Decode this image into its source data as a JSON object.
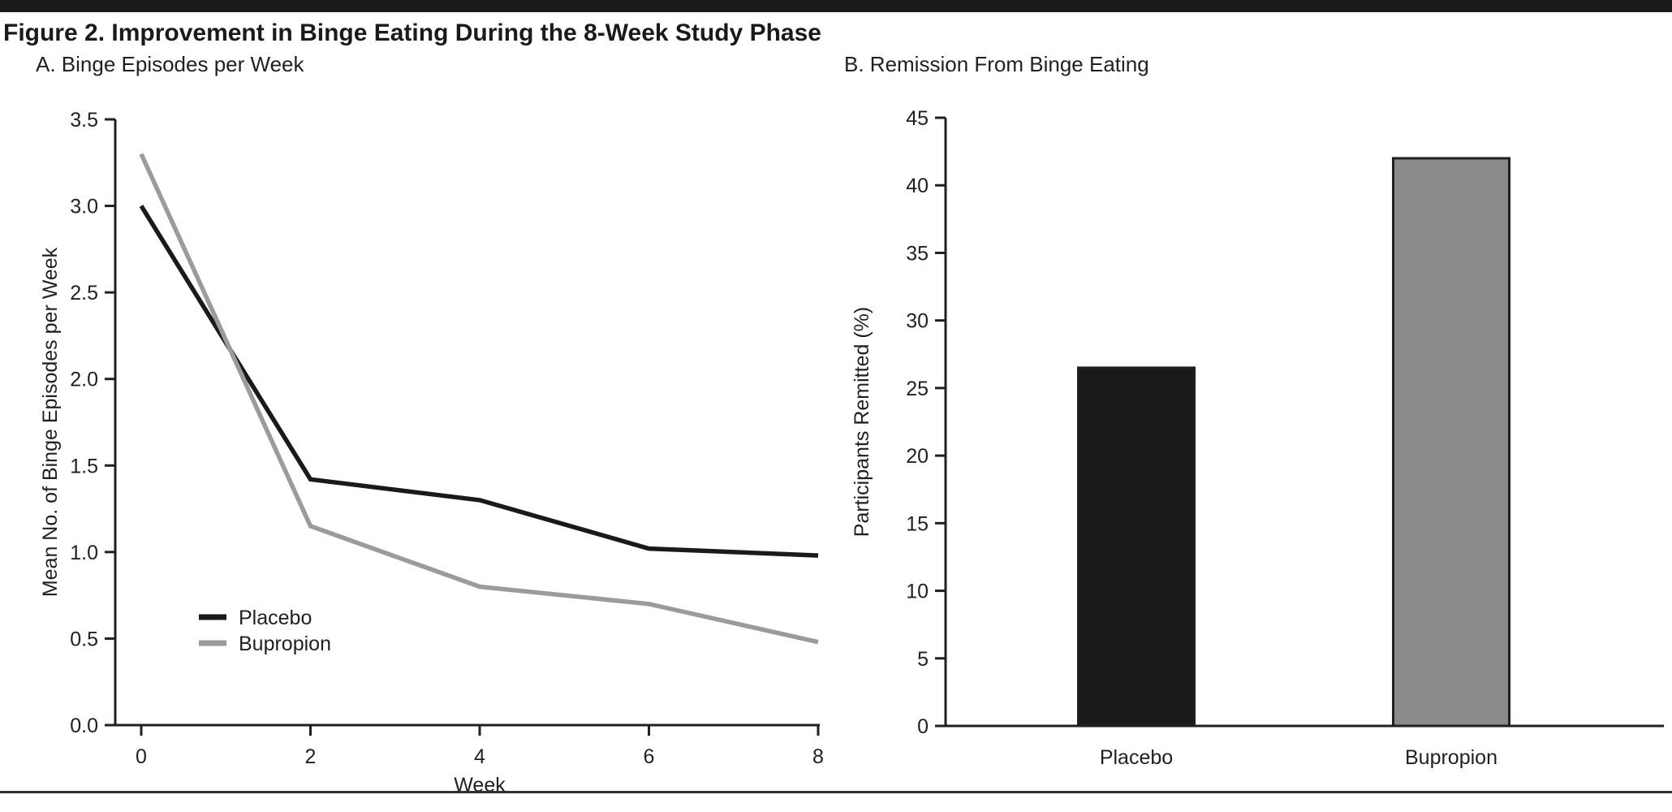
{
  "figure": {
    "title": "Figure 2. Improvement in Binge Eating During the 8-Week Study Phase"
  },
  "colors": {
    "black": "#1a1a1a",
    "gray": "#9b9b9b",
    "bar_gray": "#8a8a8a",
    "text": "#231f20"
  },
  "chart_data": [
    {
      "type": "line",
      "panel_label": "A. Binge Episodes per Week",
      "xlabel": "Week",
      "ylabel": "Mean No. of Binge Episodes per Week",
      "x": [
        0,
        2,
        4,
        6,
        8
      ],
      "xticks": [
        "0",
        "2",
        "4",
        "6",
        "8"
      ],
      "yticks": [
        "0.0",
        "0.5",
        "1.0",
        "1.5",
        "2.0",
        "2.5",
        "3.0",
        "3.5"
      ],
      "xlim": [
        0,
        8
      ],
      "ylim": [
        0,
        3.5
      ],
      "grid": false,
      "legend_position": "lower-left",
      "series": [
        {
          "name": "Placebo",
          "color_key": "black",
          "values": [
            3.0,
            1.42,
            1.3,
            1.02,
            0.98
          ]
        },
        {
          "name": "Bupropion",
          "color_key": "gray",
          "values": [
            3.3,
            1.15,
            0.8,
            0.7,
            0.48
          ]
        }
      ]
    },
    {
      "type": "bar",
      "panel_label": "B. Remission From Binge Eating",
      "xlabel": "",
      "ylabel": "Participants Remitted (%)",
      "categories": [
        "Placebo",
        "Bupropion"
      ],
      "values": [
        26.5,
        42
      ],
      "bar_colors_key": [
        "black",
        "bar_gray"
      ],
      "ylim": [
        0,
        45
      ],
      "ytick_step": 5,
      "grid": false
    }
  ]
}
